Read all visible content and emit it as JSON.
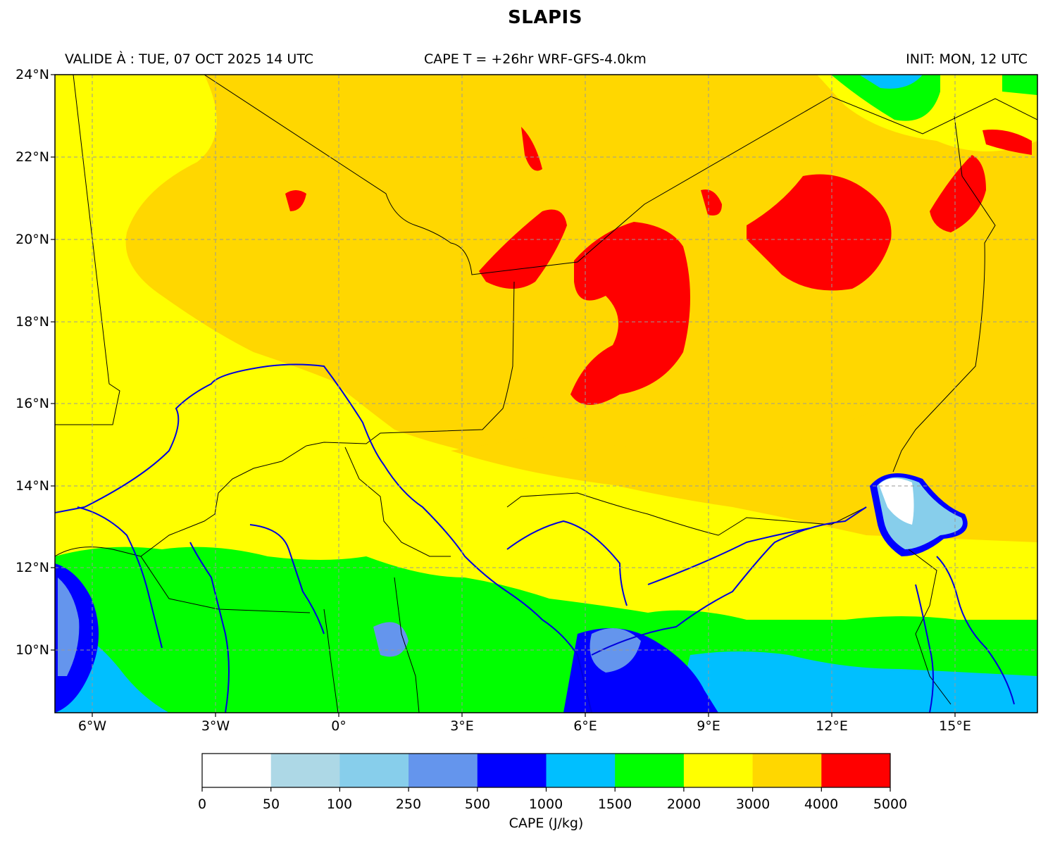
{
  "title": "SLAPIS",
  "header": {
    "valid": "VALIDE À : TUE, 07 OCT 2025 14 UTC",
    "run": "CAPE T = +26hr WRF-GFS-4.0km",
    "init": "INIT: MON, 12 UTC"
  },
  "map": {
    "lat_labels": [
      "24°N",
      "22°N",
      "20°N",
      "18°N",
      "16°N",
      "14°N",
      "12°N",
      "10°N"
    ],
    "lon_labels": [
      "6°W",
      "3°W",
      "0°",
      "3°E",
      "6°E",
      "9°E",
      "12°E",
      "15°E"
    ],
    "extent": {
      "lon_min": -6.9,
      "lon_max": 17.0,
      "lat_min": 8.5,
      "lat_max": 24.0
    }
  },
  "colorbar": {
    "label": "CAPE (J/kg)",
    "ticks": [
      "0",
      "50",
      "100",
      "250",
      "500",
      "1000",
      "1500",
      "2000",
      "3000",
      "4000",
      "5000"
    ],
    "colors": [
      "#ffffff",
      "#add8e6",
      "#87ceeb",
      "#6495ed",
      "#0000ff",
      "#00bfff",
      "#00ff00",
      "#ffff00",
      "#ffd700",
      "#ff0000"
    ]
  }
}
